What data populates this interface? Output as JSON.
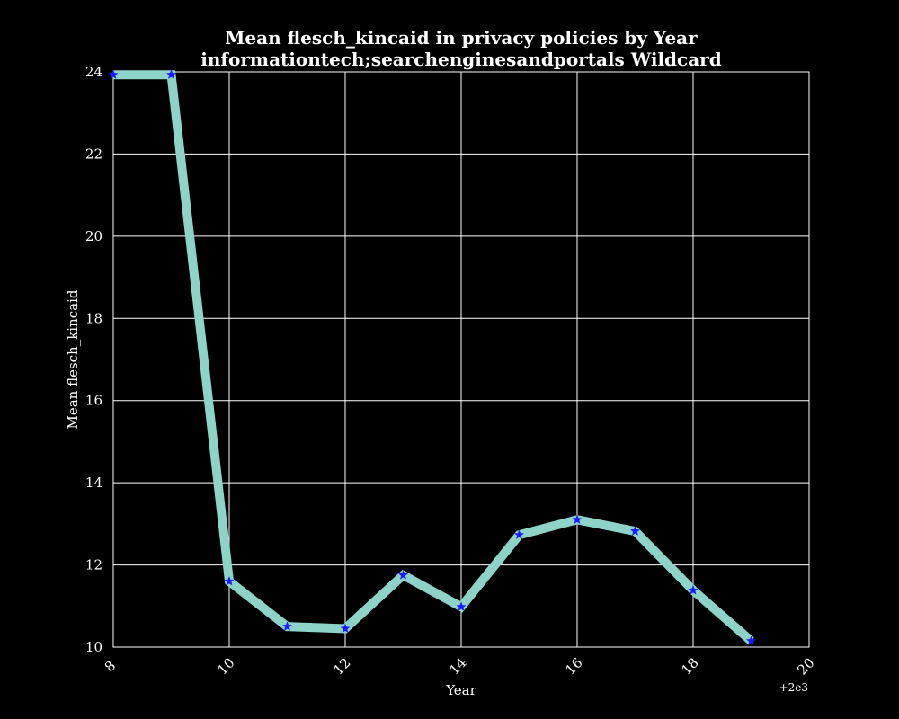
{
  "chart_data": {
    "type": "line",
    "title": "Mean flesch_kincaid in privacy policies by Year",
    "subtitle": "informationtech;searchenginesandportals Wildcard",
    "xlabel": "Year",
    "ylabel": "Mean flesch_kincaid",
    "x_offset_label": "+2e3",
    "xlim": [
      8,
      20
    ],
    "ylim": [
      10,
      24
    ],
    "x_ticks": [
      8,
      10,
      12,
      14,
      16,
      18,
      20
    ],
    "y_ticks": [
      10,
      12,
      14,
      16,
      18,
      20,
      22,
      24
    ],
    "grid": true,
    "x": [
      8,
      9,
      10,
      11,
      12,
      13,
      14,
      15,
      16,
      17,
      18,
      19
    ],
    "series": [
      {
        "values": [
          23.93,
          23.93,
          11.6,
          10.5,
          10.45,
          11.75,
          10.98,
          12.73,
          13.1,
          12.82,
          11.38,
          10.15
        ]
      }
    ],
    "colors": {
      "background": "#000000",
      "line": "#8dd3c7",
      "marker": "#1a1aff",
      "grid": "#ffffff",
      "text": "#ffffff"
    }
  }
}
